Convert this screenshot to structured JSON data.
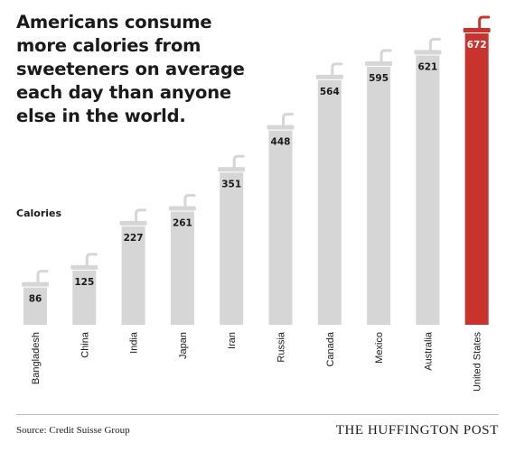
{
  "title": "Americans consume more calories from sweeteners on average each day than anyone else in the world.",
  "source": "Source: Credit Suisse Group",
  "brand": "THE HUFFINGTON POST",
  "colors": {
    "bar": "#d6d6d6",
    "highlight": "#c8332d",
    "value_text": "#1a1a1a",
    "highlight_text": "#ffffff"
  },
  "chart_data": {
    "type": "bar",
    "title": "Americans consume more calories from sweeteners on average each day than anyone else in the world.",
    "ylabel": "Calories",
    "xlabel": "",
    "categories": [
      "Bangladesh",
      "China",
      "India",
      "Japan",
      "Iran",
      "Russia",
      "Canada",
      "Mexico",
      "Australia",
      "United States"
    ],
    "tick_labels": [
      "Bangladesh",
      "China",
      "India",
      "Japan",
      "Iran",
      "Russia",
      "Canada",
      "Mexico",
      "Australia",
      "United States"
    ],
    "values": [
      86,
      125,
      227,
      261,
      351,
      448,
      564,
      595,
      621,
      672
    ],
    "data_labels": [
      "86",
      "125",
      "227",
      "261",
      "351",
      "448",
      "564",
      "595",
      "621",
      "672"
    ],
    "highlight_category": "United States",
    "ylim": [
      0,
      672
    ],
    "grid": false,
    "legend": "none"
  }
}
